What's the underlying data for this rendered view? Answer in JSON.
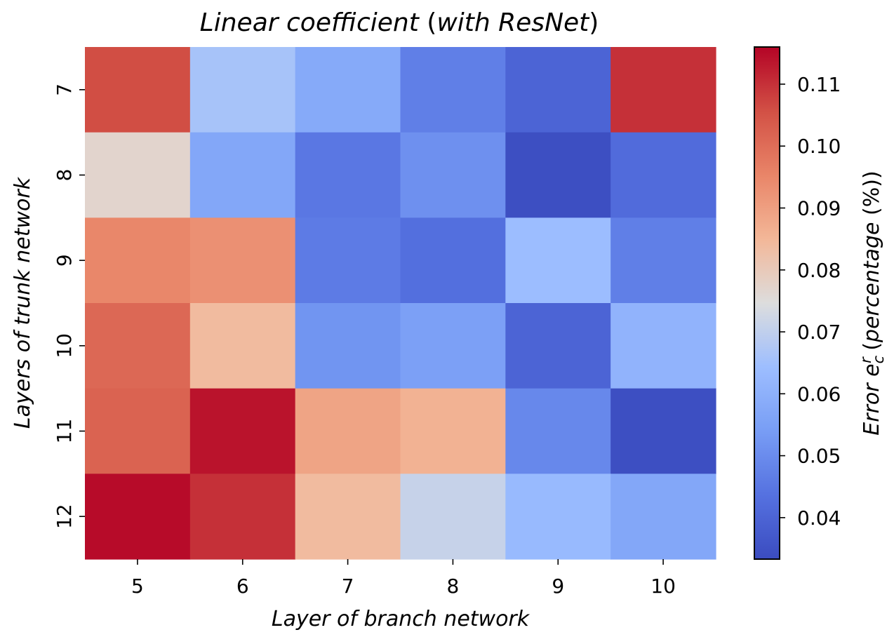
{
  "chart_data": {
    "type": "heatmap",
    "title_parts": [
      {
        "text": "Linear coefficient ",
        "italic": true
      },
      {
        "text": "(",
        "italic": false
      },
      {
        "text": "with ResNet",
        "italic": true
      },
      {
        "text": ")",
        "italic": false
      }
    ],
    "xlabel": "Layer of branch network",
    "ylabel": "Layers of trunk network",
    "x_categories": [
      "5",
      "6",
      "7",
      "8",
      "9",
      "10"
    ],
    "y_categories": [
      "7",
      "8",
      "9",
      "10",
      "11",
      "12"
    ],
    "values": [
      [
        0.106,
        0.066,
        0.058,
        0.047,
        0.04,
        0.11
      ],
      [
        0.077,
        0.057,
        0.045,
        0.051,
        0.034,
        0.042
      ],
      [
        0.095,
        0.093,
        0.046,
        0.043,
        0.064,
        0.047
      ],
      [
        0.101,
        0.084,
        0.052,
        0.055,
        0.04,
        0.061
      ],
      [
        0.102,
        0.114,
        0.089,
        0.086,
        0.049,
        0.034
      ],
      [
        0.115,
        0.11,
        0.084,
        0.071,
        0.063,
        0.057
      ]
    ],
    "colormap": "coolwarm",
    "colorbar": {
      "label_parts": [
        {
          "text": "Error e",
          "italic": true
        },
        {
          "text": "c",
          "italic": true,
          "sub": true
        },
        {
          "text": "r",
          "italic": true,
          "sup": true
        },
        {
          "text": " (",
          "italic": false
        },
        {
          "text": "percentage",
          "italic": true
        },
        {
          "text": " (%))",
          "italic": false
        }
      ],
      "vmin": 0.0333,
      "vmax": 0.116,
      "ticks": [
        "0.04",
        "0.05",
        "0.06",
        "0.07",
        "0.08",
        "0.09",
        "0.10",
        "0.11"
      ]
    }
  }
}
